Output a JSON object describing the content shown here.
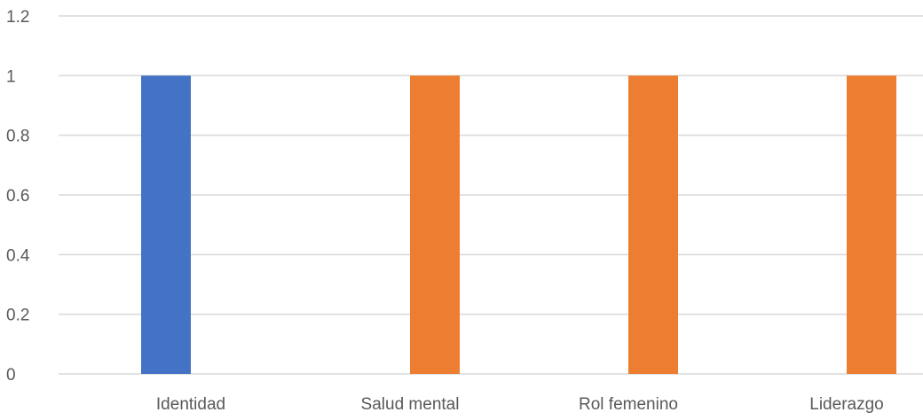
{
  "chart_data": {
    "type": "bar",
    "categories": [
      "Identidad",
      "Salud mental",
      "Rol femenino",
      "Liderazgo"
    ],
    "series": [
      {
        "values": [
          1,
          0,
          0,
          0
        ],
        "color": "#4472C4"
      },
      {
        "values": [
          0,
          1,
          1,
          1
        ],
        "color": "#ED7D31"
      }
    ],
    "y_ticks": [
      "0",
      "0.2",
      "0.4",
      "0.6",
      "0.8",
      "1",
      "1.2"
    ],
    "ylim": [
      0,
      1.2
    ],
    "grid": true,
    "gridline_color": "#D9D9D9",
    "title": "",
    "xlabel": "",
    "ylabel": ""
  }
}
